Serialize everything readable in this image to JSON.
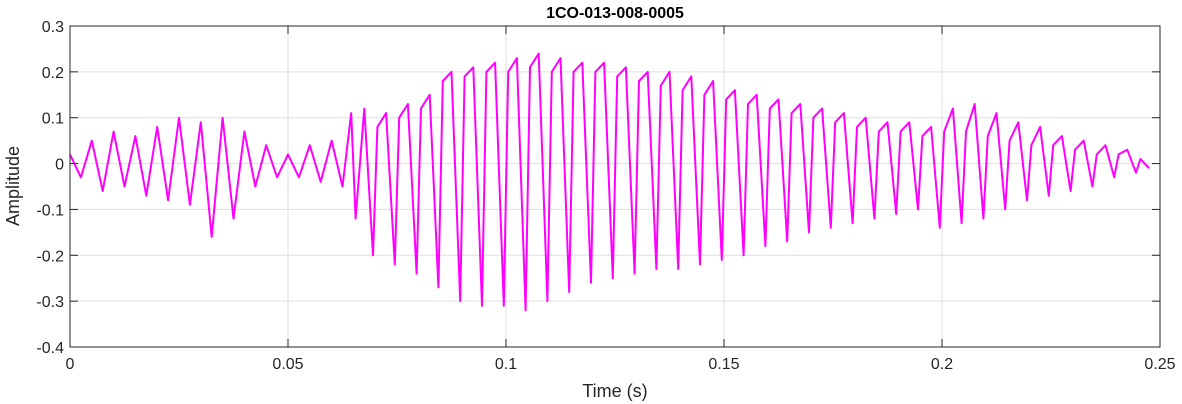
{
  "chart_data": {
    "type": "line",
    "title": "1CO-013-008-0005",
    "xlabel": "Time (s)",
    "ylabel": "Amplitude",
    "xlim": [
      0,
      0.25
    ],
    "ylim": [
      -0.4,
      0.3
    ],
    "xticks": [
      0,
      0.05,
      0.1,
      0.15,
      0.2,
      0.25
    ],
    "xtick_labels": [
      "0",
      "0.05",
      "0.1",
      "0.15",
      "0.2",
      "0.25"
    ],
    "yticks": [
      -0.4,
      -0.3,
      -0.2,
      -0.1,
      0,
      0.1,
      0.2,
      0.3
    ],
    "ytick_labels": [
      "-0.4",
      "-0.3",
      "-0.2",
      "-0.1",
      "0",
      "0.1",
      "0.2",
      "0.3"
    ],
    "grid": true,
    "line_color": "#FF00FF",
    "series": [
      {
        "x": [
          0,
          0.0025,
          0.005,
          0.0075,
          0.01,
          0.0125,
          0.015,
          0.0175,
          0.02,
          0.0225,
          0.025,
          0.0275,
          0.03,
          0.0325,
          0.035,
          0.0375,
          0.04,
          0.0425,
          0.045,
          0.0475,
          0.05,
          0.0525,
          0.055,
          0.0575,
          0.06,
          0.0625,
          0.0645,
          0.0655,
          0.0675,
          0.0695,
          0.0705,
          0.0725,
          0.0745,
          0.0755,
          0.0775,
          0.0795,
          0.0805,
          0.0825,
          0.0845,
          0.0855,
          0.0875,
          0.0895,
          0.0905,
          0.0925,
          0.0945,
          0.0955,
          0.0975,
          0.0995,
          0.1005,
          0.1025,
          0.1045,
          0.1055,
          0.1075,
          0.1095,
          0.1105,
          0.1125,
          0.1145,
          0.1155,
          0.1175,
          0.1195,
          0.1205,
          0.1225,
          0.1245,
          0.1255,
          0.1275,
          0.1295,
          0.1305,
          0.1325,
          0.1345,
          0.1355,
          0.1375,
          0.1395,
          0.1405,
          0.1425,
          0.1445,
          0.1455,
          0.1475,
          0.1495,
          0.1505,
          0.1525,
          0.1545,
          0.1555,
          0.1575,
          0.1595,
          0.1605,
          0.1625,
          0.1645,
          0.1655,
          0.1675,
          0.1695,
          0.1705,
          0.1725,
          0.1745,
          0.1755,
          0.1775,
          0.1795,
          0.1805,
          0.1825,
          0.1845,
          0.1855,
          0.1875,
          0.1895,
          0.1905,
          0.1925,
          0.1945,
          0.1955,
          0.1975,
          0.1995,
          0.2005,
          0.2025,
          0.2045,
          0.2055,
          0.2075,
          0.2095,
          0.2105,
          0.2125,
          0.2145,
          0.2155,
          0.2175,
          0.2195,
          0.2205,
          0.2225,
          0.2245,
          0.2255,
          0.2275,
          0.2295,
          0.2305,
          0.2325,
          0.2345,
          0.2355,
          0.2375,
          0.2395,
          0.2405,
          0.2425,
          0.2445,
          0.2455,
          0.2475
        ],
        "y": [
          0.02,
          -0.03,
          0.05,
          -0.06,
          0.07,
          -0.05,
          0.06,
          -0.07,
          0.08,
          -0.08,
          0.1,
          -0.09,
          0.09,
          -0.16,
          0.1,
          -0.12,
          0.07,
          -0.05,
          0.04,
          -0.03,
          0.02,
          -0.03,
          0.04,
          -0.04,
          0.05,
          -0.05,
          0.11,
          -0.12,
          0.12,
          -0.2,
          0.08,
          0.11,
          -0.22,
          0.1,
          0.13,
          -0.24,
          0.12,
          0.15,
          -0.27,
          0.18,
          0.2,
          -0.3,
          0.19,
          0.21,
          -0.31,
          0.2,
          0.22,
          -0.31,
          0.2,
          0.23,
          -0.32,
          0.21,
          0.24,
          -0.3,
          0.2,
          0.23,
          -0.28,
          0.2,
          0.22,
          -0.26,
          0.2,
          0.22,
          -0.25,
          0.19,
          0.21,
          -0.24,
          0.18,
          0.2,
          -0.23,
          0.17,
          0.2,
          -0.23,
          0.16,
          0.19,
          -0.22,
          0.15,
          0.18,
          -0.21,
          0.14,
          0.16,
          -0.2,
          0.13,
          0.15,
          -0.18,
          0.12,
          0.14,
          -0.17,
          0.11,
          0.13,
          -0.15,
          0.1,
          0.12,
          -0.14,
          0.09,
          0.11,
          -0.13,
          0.08,
          0.1,
          -0.12,
          0.07,
          0.09,
          -0.11,
          0.07,
          0.09,
          -0.1,
          0.06,
          0.08,
          -0.14,
          0.07,
          0.12,
          -0.13,
          0.07,
          0.13,
          -0.12,
          0.06,
          0.11,
          -0.1,
          0.05,
          0.09,
          -0.08,
          0.04,
          0.08,
          -0.07,
          0.04,
          0.06,
          -0.06,
          0.03,
          0.05,
          -0.05,
          0.02,
          0.04,
          -0.03,
          0.02,
          0.03,
          -0.02,
          0.01,
          -0.01
        ]
      }
    ]
  }
}
